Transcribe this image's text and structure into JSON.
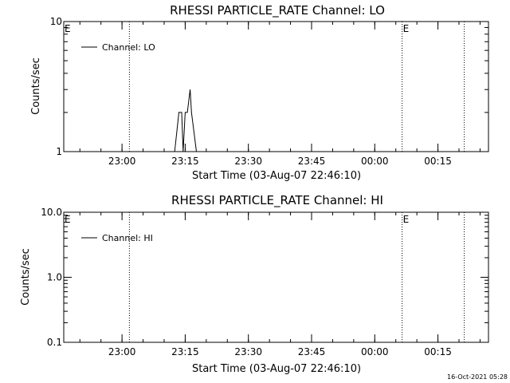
{
  "chart_data": [
    {
      "type": "line",
      "title": "RHESSI PARTICLE_RATE Channel: LO",
      "xlabel": "Start Time (03-Aug-07 22:46:10)",
      "ylabel": "Counts/sec",
      "y_scale": "log",
      "ylim": [
        1,
        10
      ],
      "y_ticks": [
        1,
        10
      ],
      "y_tick_labels": [
        "1",
        "10"
      ],
      "xlim": [
        "22:46:10",
        "00:27:00"
      ],
      "x_ticks": [
        "23:00",
        "23:15",
        "23:30",
        "23:45",
        "00:00",
        "00:15"
      ],
      "legend": "top-left",
      "series": [
        {
          "name": "Channel: LO",
          "x": [
            "23:12:30",
            "23:13:30",
            "23:14:10",
            "23:14:30",
            "23:15:00",
            "23:15:30",
            "23:16:10",
            "23:16:30",
            "23:17:40"
          ],
          "y": [
            1,
            2,
            2,
            1,
            2,
            2,
            3,
            2,
            1
          ]
        }
      ],
      "markers": [
        {
          "label": "E",
          "time": "22:46:10"
        },
        {
          "label": "",
          "time": "23:01:45"
        },
        {
          "label": "E",
          "time": "00:06:30"
        },
        {
          "label": "",
          "time": "00:21:15"
        }
      ]
    },
    {
      "type": "line",
      "title": "RHESSI PARTICLE_RATE Channel: HI",
      "xlabel": "Start Time (03-Aug-07 22:46:10)",
      "ylabel": "Counts/sec",
      "y_scale": "log",
      "ylim": [
        0.1,
        10
      ],
      "y_ticks": [
        0.1,
        1,
        10
      ],
      "y_tick_labels": [
        "0.1",
        "1.0",
        "10.0"
      ],
      "xlim": [
        "22:46:10",
        "00:27:00"
      ],
      "x_ticks": [
        "23:00",
        "23:15",
        "23:30",
        "23:45",
        "00:00",
        "00:15"
      ],
      "legend": "top-left",
      "series": [
        {
          "name": "Channel: HI",
          "x": [],
          "y": []
        }
      ],
      "markers": [
        {
          "label": "E",
          "time": "22:46:10"
        },
        {
          "label": "",
          "time": "23:01:45"
        },
        {
          "label": "E",
          "time": "00:06:30"
        },
        {
          "label": "",
          "time": "00:21:15"
        }
      ]
    }
  ],
  "footer": {
    "timestamp": "16-Oct-2021 05:28"
  }
}
